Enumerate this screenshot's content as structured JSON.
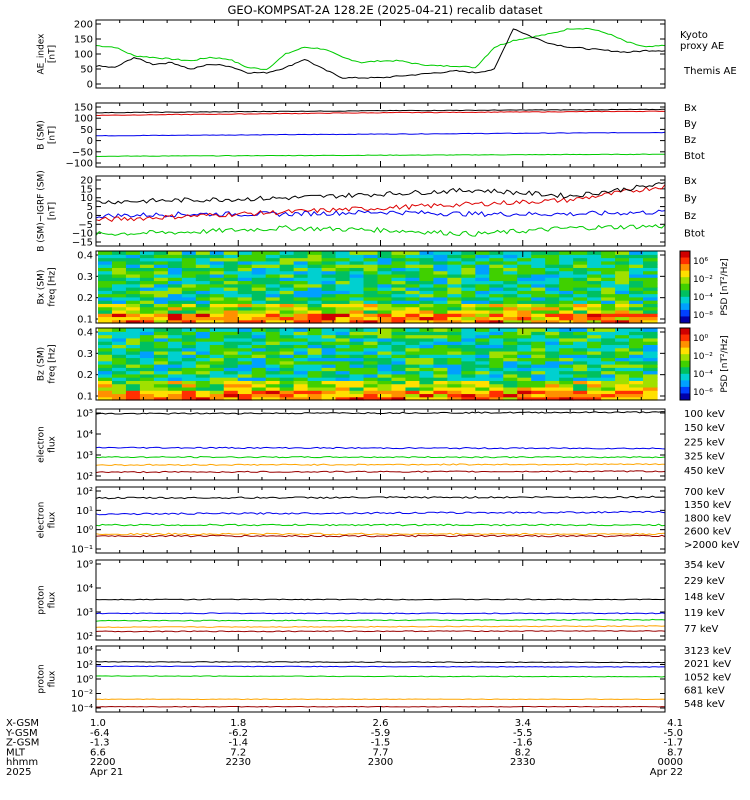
{
  "title": "GEO-KOMPSAT-2A 128.2E (2025-04-21) recalib dataset",
  "colors": {
    "black": "#000000",
    "blue": "#0000ee",
    "green": "#00cc00",
    "red": "#dd0000",
    "orange": "#ffa500",
    "maroon": "#990000"
  },
  "chart_data": [
    {
      "id": "ae",
      "type": "line",
      "ylabel": [
        "AE_index",
        "[nT]"
      ],
      "ylim": [
        0,
        200
      ],
      "yticks": [
        "200",
        "150",
        "100",
        "50",
        "0"
      ],
      "series": [
        {
          "name": "Kyoto proxy AE",
          "color": "#00cc00",
          "label_lines": [
            "Kyoto",
            "proxy AE"
          ],
          "x": [
            0,
            2,
            4,
            6,
            8,
            10,
            12,
            14,
            16,
            18,
            20,
            22,
            24,
            26,
            28,
            30,
            32,
            34,
            36,
            38,
            40,
            42,
            44,
            46,
            48,
            50,
            52,
            54,
            56,
            58,
            60
          ],
          "values": [
            125,
            120,
            95,
            90,
            85,
            80,
            90,
            85,
            60,
            55,
            100,
            120,
            115,
            90,
            75,
            80,
            80,
            70,
            65,
            65,
            60,
            120,
            140,
            150,
            160,
            175,
            175,
            160,
            135,
            120,
            125
          ]
        },
        {
          "name": "Themis AE",
          "color": "#000000",
          "label_lines": [
            "Themis AE"
          ],
          "x": [
            0,
            2,
            4,
            6,
            8,
            10,
            12,
            14,
            16,
            18,
            20,
            22,
            24,
            26,
            28,
            30,
            32,
            34,
            36,
            38,
            40,
            42,
            44,
            46,
            48,
            50,
            52,
            54,
            56,
            58,
            60
          ],
          "values": [
            65,
            60,
            90,
            70,
            75,
            55,
            70,
            65,
            45,
            45,
            60,
            85,
            55,
            30,
            30,
            30,
            35,
            40,
            45,
            50,
            45,
            55,
            175,
            150,
            130,
            120,
            115,
            110,
            105,
            110,
            110
          ]
        }
      ]
    },
    {
      "id": "bsm",
      "type": "line",
      "ylabel": [
        "B (SM)",
        "[nT]"
      ],
      "ylim": [
        -100,
        150
      ],
      "yticks": [
        "150",
        "100",
        "50",
        "0",
        "−50",
        "−100"
      ],
      "series": [
        {
          "name": "Bx",
          "color": "#0000ee",
          "x": [
            0,
            60
          ],
          "values": [
            22,
            35
          ]
        },
        {
          "name": "By",
          "color": "#00cc00",
          "x": [
            0,
            60
          ],
          "values": [
            -58,
            -50
          ]
        },
        {
          "name": "Bz",
          "color": "#dd0000",
          "x": [
            0,
            30,
            60
          ],
          "values": [
            102,
            112,
            118
          ]
        },
        {
          "name": "Btot",
          "color": "#000000",
          "x": [
            0,
            30,
            60
          ],
          "values": [
            112,
            120,
            125
          ]
        }
      ]
    },
    {
      "id": "bdiff",
      "type": "line",
      "ylabel": [
        "B (SM)−IGRF (SM)",
        "[nT]"
      ],
      "ylim": [
        -15,
        20
      ],
      "yticks": [
        "20",
        "15",
        "10",
        "5",
        "0",
        "−5",
        "−10",
        "−15"
      ],
      "series": [
        {
          "name": "Bx",
          "color": "#0000ee",
          "x": [
            0,
            10,
            20,
            30,
            40,
            50,
            60
          ],
          "values": [
            0,
            1,
            1,
            2,
            1,
            1,
            2
          ]
        },
        {
          "name": "By",
          "color": "#00cc00",
          "x": [
            0,
            10,
            20,
            30,
            40,
            50,
            60
          ],
          "values": [
            -9,
            -8,
            -6,
            -7,
            -9,
            -6,
            -5
          ]
        },
        {
          "name": "Bz",
          "color": "#dd0000",
          "x": [
            0,
            10,
            20,
            30,
            40,
            50,
            60
          ],
          "values": [
            -2,
            0,
            2,
            4,
            6,
            8,
            15
          ]
        },
        {
          "name": "Btot",
          "color": "#000000",
          "x": [
            0,
            10,
            20,
            30,
            40,
            50,
            60
          ],
          "values": [
            7,
            8,
            9,
            11,
            13,
            10,
            16
          ]
        }
      ]
    },
    {
      "id": "bx-spec",
      "type": "heatmap",
      "ylabel": [
        "Bx (SM)",
        "freq [Hz]"
      ],
      "ylim": [
        0.03,
        0.5
      ],
      "yticks": [
        "0.4",
        "0.3",
        "0.2",
        "0.1"
      ],
      "colorbar": {
        "ticks": [
          "10⁶",
          "10⁻²",
          "10⁻⁴",
          "10⁻⁸"
        ],
        "label": "PSD [nT²/Hz]"
      }
    },
    {
      "id": "bz-spec",
      "type": "heatmap",
      "ylabel": [
        "Bz (SM)",
        "freq [Hz]"
      ],
      "ylim": [
        0.03,
        0.5
      ],
      "yticks": [
        "0.4",
        "0.3",
        "0.2",
        "0.1"
      ],
      "colorbar": {
        "ticks": [
          "10⁰",
          "10⁻²",
          "10⁻⁴",
          "10⁻⁶"
        ],
        "label": "PSD [nT²/Hz]"
      }
    },
    {
      "id": "eflux-low",
      "type": "line",
      "log": true,
      "ylabel": [
        "electron",
        "flux"
      ],
      "ylim": [
        1.5,
        6
      ],
      "yticks": [
        "10⁵",
        "10⁴",
        "10³",
        "10²"
      ],
      "series": [
        {
          "name": "100 keV",
          "color": "#000000",
          "x": [
            0,
            60
          ],
          "values": [
            5.7,
            5.8
          ]
        },
        {
          "name": "150 keV",
          "color": "#0000ee",
          "x": [
            0,
            60
          ],
          "values": [
            3.55,
            3.5
          ]
        },
        {
          "name": "225 keV",
          "color": "#00cc00",
          "x": [
            0,
            60
          ],
          "values": [
            2.95,
            2.95
          ]
        },
        {
          "name": "325 keV",
          "color": "#ffa500",
          "x": [
            0,
            60
          ],
          "values": [
            2.45,
            2.5
          ]
        },
        {
          "name": "450 keV",
          "color": "#990000",
          "x": [
            0,
            60
          ],
          "values": [
            2.0,
            2.05
          ]
        }
      ]
    },
    {
      "id": "eflux-high",
      "type": "line",
      "log": true,
      "ylabel": [
        "electron",
        "flux"
      ],
      "ylim": [
        -1.3,
        2
      ],
      "yticks": [
        "10²",
        "10¹",
        "10⁰",
        "10⁻¹"
      ],
      "series": [
        {
          "name": "700 keV",
          "color": "#000000",
          "x": [
            0,
            60
          ],
          "values": [
            1.45,
            1.5
          ]
        },
        {
          "name": "1350 keV",
          "color": "#0000ee",
          "x": [
            0,
            60
          ],
          "values": [
            0.65,
            0.75
          ]
        },
        {
          "name": "1800 keV",
          "color": "#00cc00",
          "x": [
            0,
            60
          ],
          "values": [
            0.1,
            0.1
          ]
        },
        {
          "name": "2600 keV",
          "color": "#ffa500",
          "x": [
            0,
            60
          ],
          "values": [
            -0.35,
            -0.35
          ]
        },
        {
          "name": ">2000 keV",
          "color": "#990000",
          "x": [
            0,
            60
          ],
          "values": [
            -0.45,
            -0.45
          ]
        }
      ]
    },
    {
      "id": "pflux-low",
      "type": "line",
      "log": true,
      "ylabel": [
        "proton",
        "flux"
      ],
      "ylim": [
        1.5,
        9
      ],
      "yticks": [
        "10⁹",
        "10⁴",
        "10³",
        "10²"
      ],
      "series": [
        {
          "name": "354 keV",
          "color": "#990000",
          "x": [
            0,
            60
          ],
          "values": [
            2.3,
            2.35
          ]
        },
        {
          "name": "229 keV",
          "color": "#ffa500",
          "x": [
            0,
            60
          ],
          "values": [
            2.7,
            2.8
          ]
        },
        {
          "name": "148 keV",
          "color": "#00cc00",
          "x": [
            0,
            60
          ],
          "values": [
            3.3,
            3.4
          ]
        },
        {
          "name": "119 keV",
          "color": "#0000ee",
          "x": [
            0,
            60
          ],
          "values": [
            4.0,
            4.0
          ]
        },
        {
          "name": "77 keV",
          "color": "#000000",
          "x": [
            0,
            60
          ],
          "values": [
            5.3,
            5.3
          ]
        }
      ]
    },
    {
      "id": "pflux-high",
      "type": "line",
      "log": true,
      "ylabel": [
        "proton",
        "flux"
      ],
      "ylim": [
        -4.5,
        4.3
      ],
      "yticks": [
        "10⁴",
        "10²",
        "10⁰",
        "10⁻²",
        "10⁻⁴"
      ],
      "series": [
        {
          "name": "3123 keV",
          "color": "#990000",
          "x": [
            0,
            60
          ],
          "values": [
            -3.8,
            -3.8
          ]
        },
        {
          "name": "2021 keV",
          "color": "#ffa500",
          "x": [
            0,
            60
          ],
          "values": [
            -2.8,
            -2.8
          ]
        },
        {
          "name": "1052 keV",
          "color": "#00cc00",
          "x": [
            0,
            60
          ],
          "values": [
            0.3,
            0.2
          ]
        },
        {
          "name": "681 keV",
          "color": "#0000ee",
          "x": [
            0,
            60
          ],
          "values": [
            1.6,
            1.5
          ]
        },
        {
          "name": "548 keV",
          "color": "#000000",
          "x": [
            0,
            60
          ],
          "values": [
            2.2,
            2.1
          ]
        }
      ]
    }
  ],
  "xaxis": {
    "row_labels": [
      "X-GSM",
      "Y-GSM",
      "Z-GSM",
      "MLT",
      "hhmm",
      "2025"
    ],
    "columns": [
      {
        "minute": 0,
        "rows": [
          "1.0",
          "-6.4",
          "-1.3",
          "6.6",
          "2200",
          "Apr 21"
        ]
      },
      {
        "minute": 15,
        "rows": [
          "1.8",
          "-6.2",
          "-1.4",
          "7.2",
          "2230",
          ""
        ]
      },
      {
        "minute": 30,
        "rows": [
          "2.6",
          "-5.9",
          "-1.5",
          "7.7",
          "2300",
          ""
        ]
      },
      {
        "minute": 45,
        "rows": [
          "3.4",
          "-5.5",
          "-1.6",
          "8.2",
          "2330",
          ""
        ]
      },
      {
        "minute": 60,
        "rows": [
          "4.1",
          "-5.0",
          "-1.7",
          "8.7",
          "0000",
          "Apr 22"
        ]
      }
    ]
  }
}
